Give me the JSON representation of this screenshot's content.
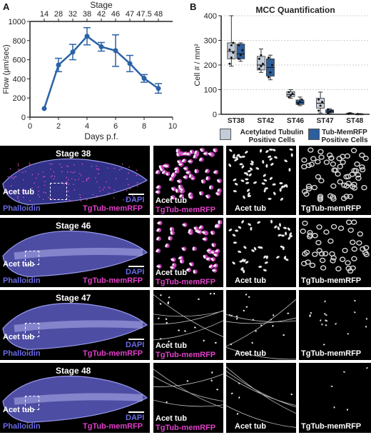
{
  "panel_a": {
    "label": "A",
    "chart_data": {
      "type": "line",
      "title": "",
      "xlabel": "Days p.f.",
      "ylabel": "Flow (μm/sec)",
      "top_axis_label": "Stage",
      "x_ticks": [
        "0",
        "2",
        "4",
        "6",
        "8",
        "10"
      ],
      "y_ticks": [
        "0",
        "200",
        "400",
        "600",
        "800",
        "1000"
      ],
      "top_ticks": [
        "14",
        "28",
        "32",
        "38",
        "42",
        "46",
        "47",
        "47.5",
        "48"
      ],
      "xlim": [
        0,
        10
      ],
      "ylim": [
        0,
        1000
      ],
      "series": [
        {
          "x": [
            1,
            2,
            3,
            4,
            5,
            6,
            7,
            8,
            9
          ],
          "y": [
            90,
            545,
            680,
            845,
            735,
            695,
            560,
            405,
            300
          ],
          "err": [
            0,
            70,
            80,
            90,
            45,
            165,
            85,
            40,
            50
          ]
        }
      ],
      "color": "#2a62a6"
    }
  },
  "panel_b": {
    "label": "B",
    "chart_data": {
      "type": "box",
      "title": "MCC Quantification",
      "ylabel": "Cell # / mm²",
      "categories": [
        "ST38",
        "ST42",
        "ST46",
        "ST47",
        "ST48"
      ],
      "y_ticks": [
        "0",
        "100",
        "200",
        "300",
        "400"
      ],
      "ylim": [
        0,
        400
      ],
      "series": [
        {
          "name": "Acetylated Tubulin Positive Cells",
          "color": "#c2ccd9",
          "boxes": [
            {
              "min": 195,
              "q1": 225,
              "median": 255,
              "q3": 290,
              "max": 400,
              "points": [
                205,
                230,
                250,
                262,
                280,
                290
              ]
            },
            {
              "min": 170,
              "q1": 180,
              "median": 200,
              "q3": 235,
              "max": 265,
              "points": [
                185,
                195,
                205,
                225,
                240
              ]
            },
            {
              "min": 65,
              "q1": 72,
              "median": 80,
              "q3": 92,
              "max": 100,
              "points": [
                70,
                78,
                84,
                90
              ]
            },
            {
              "min": 5,
              "q1": 25,
              "median": 45,
              "q3": 65,
              "max": 90,
              "points": [
                15,
                35,
                50,
                60
              ]
            },
            {
              "min": 0,
              "q1": 1,
              "median": 2,
              "q3": 4,
              "max": 6,
              "points": [
                2,
                4
              ]
            }
          ]
        },
        {
          "name": "Tub-MemRFP Positive Cells",
          "color": "#2b5f9e",
          "boxes": [
            {
              "min": 215,
              "q1": 225,
              "median": 245,
              "q3": 285,
              "max": 290,
              "points": [
                225,
                240,
                260,
                280
              ]
            },
            {
              "min": 140,
              "q1": 155,
              "median": 190,
              "q3": 225,
              "max": 240,
              "points": [
                150,
                170,
                200,
                230
              ]
            },
            {
              "min": 35,
              "q1": 40,
              "median": 48,
              "q3": 58,
              "max": 70,
              "points": [
                42,
                50,
                60
              ]
            },
            {
              "min": 2,
              "q1": 6,
              "median": 12,
              "q3": 18,
              "max": 22,
              "points": [
                5,
                10,
                15,
                20
              ]
            },
            {
              "min": 0,
              "q1": 0,
              "median": 1,
              "q3": 2,
              "max": 3,
              "points": [
                1
              ]
            }
          ]
        }
      ],
      "legend": [
        {
          "line1": "Acetylated Tubulin",
          "line2": "Positive Cells",
          "color": "#c2ccd9"
        },
        {
          "line1": "Tub-MemRFP",
          "line2": "Positive Cells",
          "color": "#2b5f9e"
        }
      ]
    }
  },
  "panel_c": {
    "label": "C",
    "rows": [
      {
        "stage": "Stage 38"
      },
      {
        "stage": "Stage 46"
      },
      {
        "stage": "Stage 47"
      },
      {
        "stage": "Stage 48"
      }
    ],
    "labels": {
      "acet_tub": "Acet tub",
      "phalloidin": "Phalloidin",
      "dapi": "DAPI",
      "tgtub": "TgTub-memRFP"
    }
  }
}
